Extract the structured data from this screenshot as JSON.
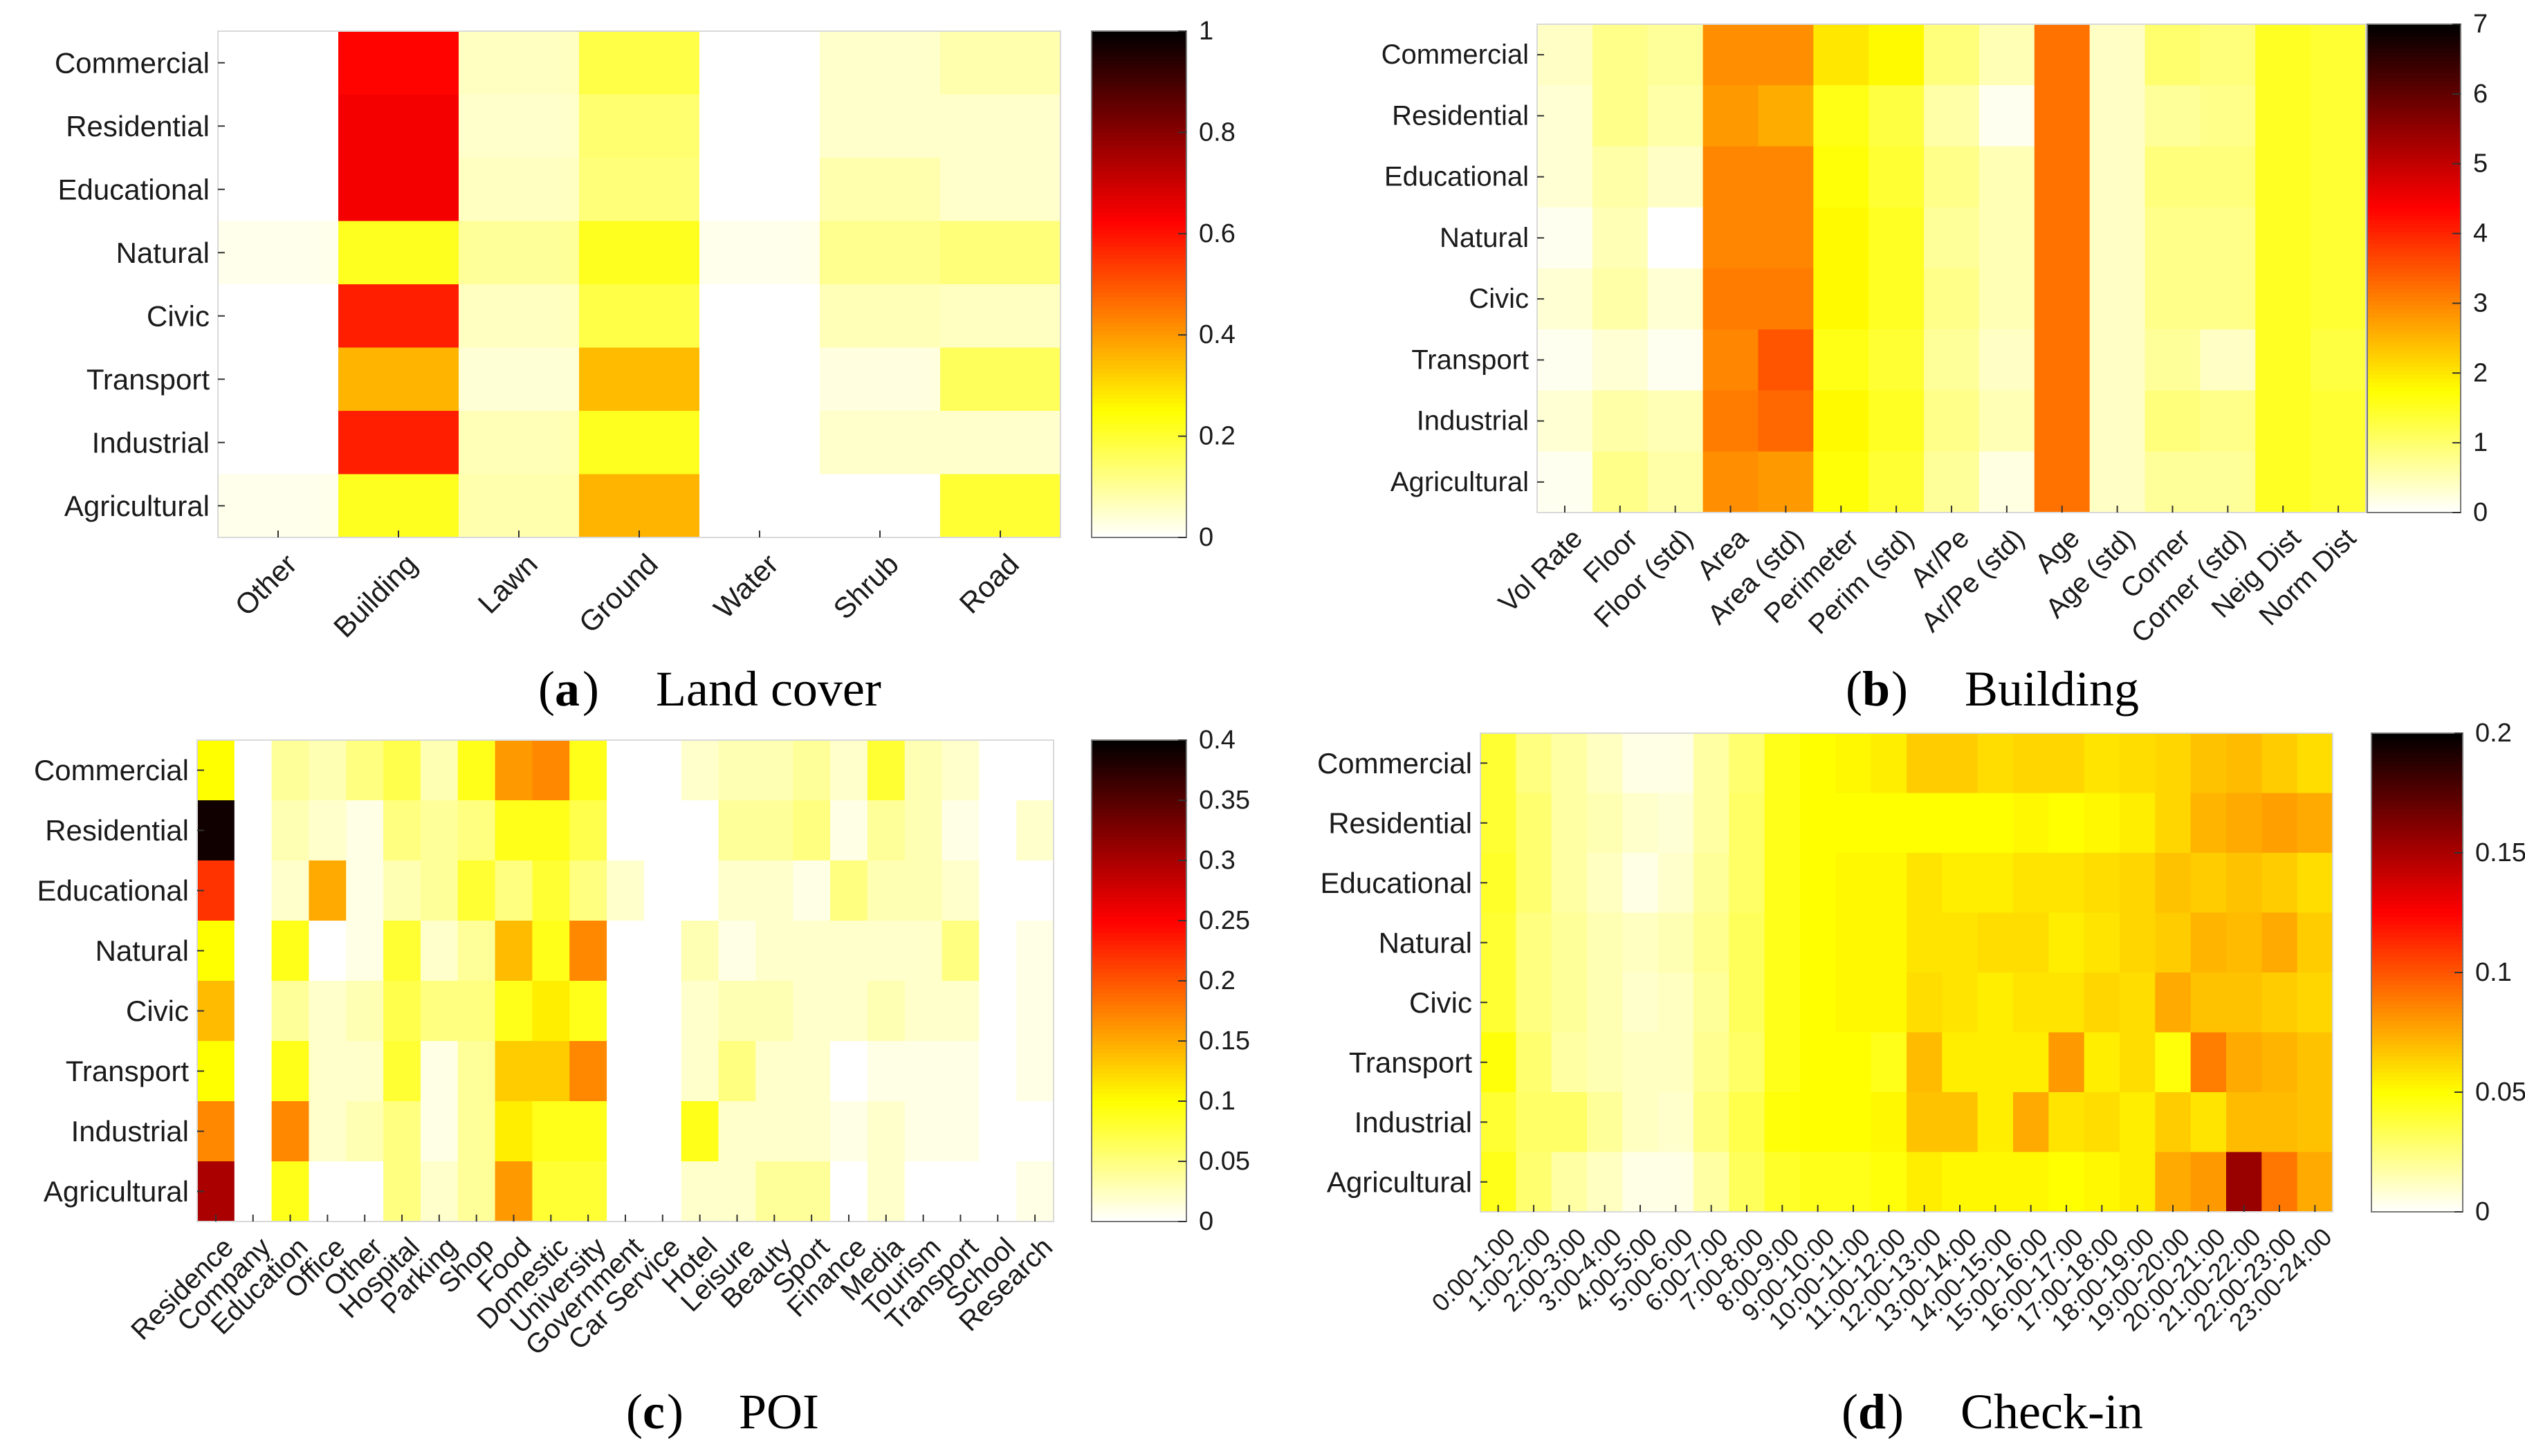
{
  "figure": {
    "panels": [
      {
        "letter": "a",
        "caption": "Land cover"
      },
      {
        "letter": "b",
        "caption": "Building"
      },
      {
        "letter": "c",
        "caption": "POI"
      },
      {
        "letter": "d",
        "caption": "Check-in"
      }
    ]
  },
  "chart_data": [
    {
      "id": "a",
      "type": "heatmap",
      "title": "(a) Land cover",
      "rows": [
        "Commercial",
        "Residential",
        "Educational",
        "Natural",
        "Civic",
        "Transport",
        "Industrial",
        "Agricultural"
      ],
      "columns": [
        "Other",
        "Building",
        "Lawn",
        "Ground",
        "Water",
        "Shrub",
        "Road"
      ],
      "colorbar": {
        "min": 0,
        "max": 1,
        "ticks": [
          "0",
          "0.2",
          "0.4",
          "0.6",
          "0.8",
          "1"
        ]
      },
      "values": [
        [
          0.0,
          0.62,
          0.06,
          0.18,
          0.0,
          0.05,
          0.08
        ],
        [
          0.0,
          0.64,
          0.05,
          0.14,
          0.0,
          0.05,
          0.05
        ],
        [
          0.0,
          0.64,
          0.06,
          0.13,
          0.0,
          0.08,
          0.05
        ],
        [
          0.02,
          0.22,
          0.1,
          0.22,
          0.02,
          0.11,
          0.13
        ],
        [
          0.0,
          0.58,
          0.06,
          0.18,
          0.0,
          0.07,
          0.06
        ],
        [
          0.0,
          0.36,
          0.04,
          0.35,
          0.0,
          0.03,
          0.16
        ],
        [
          0.0,
          0.58,
          0.07,
          0.22,
          0.0,
          0.05,
          0.05
        ],
        [
          0.02,
          0.22,
          0.08,
          0.36,
          0.0,
          0.0,
          0.2
        ]
      ]
    },
    {
      "id": "b",
      "type": "heatmap",
      "title": "(b) Building",
      "rows": [
        "Commercial",
        "Residential",
        "Educational",
        "Natural",
        "Civic",
        "Transport",
        "Industrial",
        "Agricultural"
      ],
      "columns": [
        "Vol Rate",
        "Floor",
        "Floor (std)",
        "Area",
        "Area (std)",
        "Perimeter",
        "Perim (std)",
        "Ar/Pe",
        "Ar/Pe (std)",
        "Age",
        "Age (std)",
        "Corner",
        "Corner (std)",
        "Neig Dist",
        "Norm Dist"
      ],
      "colorbar": {
        "min": 0,
        "max": 7,
        "ticks": [
          "0",
          "1",
          "2",
          "3",
          "4",
          "5",
          "6",
          "7"
        ]
      },
      "values": [
        [
          0.4,
          0.8,
          0.7,
          2.9,
          2.9,
          2.0,
          1.8,
          0.9,
          0.5,
          3.2,
          0.4,
          1.0,
          0.9,
          1.5,
          1.4
        ],
        [
          0.3,
          0.8,
          0.6,
          2.8,
          2.6,
          1.6,
          1.3,
          0.6,
          0.1,
          3.2,
          0.4,
          0.7,
          0.8,
          1.5,
          1.4
        ],
        [
          0.3,
          0.6,
          0.4,
          3.0,
          3.0,
          1.7,
          1.4,
          0.8,
          0.5,
          3.2,
          0.4,
          0.9,
          0.9,
          1.5,
          1.4
        ],
        [
          0.1,
          0.5,
          0.0,
          3.0,
          3.0,
          1.8,
          1.5,
          0.7,
          0.5,
          3.2,
          0.4,
          0.8,
          0.8,
          1.5,
          1.4
        ],
        [
          0.3,
          0.6,
          0.3,
          3.1,
          3.1,
          1.8,
          1.5,
          0.8,
          0.5,
          3.2,
          0.4,
          0.8,
          0.8,
          1.5,
          1.4
        ],
        [
          0.1,
          0.3,
          0.1,
          3.0,
          3.5,
          1.6,
          1.4,
          0.7,
          0.4,
          3.2,
          0.4,
          0.7,
          0.4,
          1.5,
          1.3
        ],
        [
          0.3,
          0.6,
          0.5,
          3.1,
          3.3,
          1.8,
          1.5,
          0.8,
          0.5,
          3.2,
          0.4,
          0.9,
          0.8,
          1.5,
          1.4
        ],
        [
          0.1,
          0.8,
          0.6,
          2.9,
          2.8,
          1.7,
          1.4,
          0.7,
          0.2,
          3.2,
          0.4,
          0.7,
          0.7,
          1.5,
          1.4
        ]
      ]
    },
    {
      "id": "c",
      "type": "heatmap",
      "title": "(c) POI",
      "rows": [
        "Commercial",
        "Residential",
        "Educational",
        "Natural",
        "Civic",
        "Transport",
        "Industrial",
        "Agricultural"
      ],
      "columns": [
        "Residence",
        "Company",
        "Education",
        "Office",
        "Other",
        "Hospital",
        "Parking",
        "Shop",
        "Food",
        "Domestic",
        "University",
        "Government",
        "Car Service",
        "Hotel",
        "Leisure",
        "Beauty",
        "Sport",
        "Finance",
        "Media",
        "Tourism",
        "Transport",
        "School",
        "Research"
      ],
      "colorbar": {
        "min": 0,
        "max": 0.4,
        "ticks": [
          "0",
          "0.05",
          "0.1",
          "0.15",
          "0.2",
          "0.25",
          "0.3",
          "0.35",
          "0.4"
        ]
      },
      "values": [
        [
          0.1,
          0.0,
          0.04,
          0.03,
          0.05,
          0.07,
          0.03,
          0.09,
          0.16,
          0.17,
          0.09,
          0.0,
          0.0,
          0.02,
          0.03,
          0.03,
          0.04,
          0.02,
          0.08,
          0.03,
          0.02,
          0.0,
          0.0
        ],
        [
          0.39,
          0.0,
          0.03,
          0.02,
          0.01,
          0.05,
          0.04,
          0.05,
          0.09,
          0.09,
          0.07,
          0.0,
          0.0,
          0.0,
          0.04,
          0.04,
          0.05,
          0.01,
          0.04,
          0.03,
          0.01,
          0.0,
          0.02
        ],
        [
          0.22,
          0.0,
          0.02,
          0.15,
          0.01,
          0.03,
          0.04,
          0.08,
          0.05,
          0.08,
          0.05,
          0.02,
          0.0,
          0.0,
          0.02,
          0.02,
          0.01,
          0.05,
          0.03,
          0.03,
          0.02,
          0.0,
          0.0
        ],
        [
          0.1,
          0.0,
          0.09,
          0.0,
          0.01,
          0.08,
          0.02,
          0.04,
          0.14,
          0.09,
          0.17,
          0.0,
          0.0,
          0.03,
          0.01,
          0.02,
          0.02,
          0.02,
          0.02,
          0.02,
          0.05,
          0.0,
          0.01
        ],
        [
          0.14,
          0.0,
          0.04,
          0.02,
          0.03,
          0.07,
          0.05,
          0.05,
          0.09,
          0.11,
          0.09,
          0.0,
          0.0,
          0.02,
          0.03,
          0.03,
          0.02,
          0.02,
          0.03,
          0.02,
          0.02,
          0.0,
          0.01
        ],
        [
          0.1,
          0.0,
          0.09,
          0.02,
          0.02,
          0.08,
          0.01,
          0.04,
          0.13,
          0.13,
          0.17,
          0.0,
          0.0,
          0.02,
          0.05,
          0.02,
          0.02,
          0.0,
          0.01,
          0.01,
          0.01,
          0.0,
          0.01
        ],
        [
          0.17,
          0.0,
          0.17,
          0.02,
          0.03,
          0.05,
          0.01,
          0.04,
          0.11,
          0.09,
          0.09,
          0.0,
          0.0,
          0.09,
          0.02,
          0.02,
          0.02,
          0.01,
          0.02,
          0.01,
          0.01,
          0.0,
          0.0
        ],
        [
          0.3,
          0.0,
          0.09,
          0.0,
          0.0,
          0.05,
          0.02,
          0.04,
          0.16,
          0.08,
          0.08,
          0.0,
          0.0,
          0.02,
          0.02,
          0.04,
          0.04,
          0.0,
          0.02,
          0.0,
          0.0,
          0.0,
          0.01
        ]
      ]
    },
    {
      "id": "d",
      "type": "heatmap",
      "title": "(d) Check-in",
      "rows": [
        "Commercial",
        "Residential",
        "Educational",
        "Natural",
        "Civic",
        "Transport",
        "Industrial",
        "Agricultural"
      ],
      "columns": [
        "0:00-1:00",
        "1:00-2:00",
        "2:00-3:00",
        "3:00-4:00",
        "4:00-5:00",
        "5:00-6:00",
        "6:00-7:00",
        "7:00-8:00",
        "8:00-9:00",
        "9:00-10:00",
        "10:00-11:00",
        "11:00-12:00",
        "12:00-13:00",
        "13:00-14:00",
        "14:00-15:00",
        "15:00-16:00",
        "16:00-17:00",
        "17:00-18:00",
        "18:00-19:00",
        "19:00-20:00",
        "20:00-21:00",
        "21:00-22:00",
        "22:00-23:00",
        "23:00-24:00"
      ],
      "colorbar": {
        "min": 0,
        "max": 0.2,
        "ticks": [
          "0",
          "0.05",
          "0.1",
          "0.15",
          " 0.2"
        ]
      },
      "values": [
        [
          0.04,
          0.025,
          0.018,
          0.012,
          0.005,
          0.005,
          0.018,
          0.028,
          0.045,
          0.05,
          0.052,
          0.055,
          0.065,
          0.065,
          0.06,
          0.062,
          0.062,
          0.058,
          0.06,
          0.062,
          0.068,
          0.07,
          0.065,
          0.06
        ],
        [
          0.04,
          0.028,
          0.018,
          0.015,
          0.01,
          0.008,
          0.018,
          0.03,
          0.045,
          0.05,
          0.05,
          0.05,
          0.05,
          0.05,
          0.05,
          0.052,
          0.05,
          0.052,
          0.055,
          0.062,
          0.072,
          0.075,
          0.078,
          0.075
        ],
        [
          0.042,
          0.028,
          0.018,
          0.012,
          0.005,
          0.01,
          0.02,
          0.03,
          0.045,
          0.05,
          0.052,
          0.052,
          0.058,
          0.055,
          0.055,
          0.058,
          0.058,
          0.06,
          0.062,
          0.068,
          0.065,
          0.068,
          0.065,
          0.06
        ],
        [
          0.04,
          0.025,
          0.02,
          0.015,
          0.012,
          0.015,
          0.022,
          0.032,
          0.045,
          0.05,
          0.052,
          0.052,
          0.058,
          0.058,
          0.06,
          0.06,
          0.055,
          0.058,
          0.062,
          0.065,
          0.072,
          0.07,
          0.075,
          0.065
        ],
        [
          0.04,
          0.025,
          0.02,
          0.015,
          0.01,
          0.012,
          0.02,
          0.032,
          0.045,
          0.05,
          0.052,
          0.052,
          0.06,
          0.058,
          0.055,
          0.058,
          0.058,
          0.062,
          0.06,
          0.075,
          0.068,
          0.068,
          0.065,
          0.062
        ],
        [
          0.048,
          0.028,
          0.018,
          0.015,
          0.012,
          0.012,
          0.022,
          0.03,
          0.045,
          0.05,
          0.05,
          0.045,
          0.07,
          0.055,
          0.055,
          0.055,
          0.08,
          0.055,
          0.06,
          0.048,
          0.088,
          0.075,
          0.072,
          0.068
        ],
        [
          0.04,
          0.03,
          0.03,
          0.02,
          0.012,
          0.01,
          0.025,
          0.035,
          0.048,
          0.05,
          0.05,
          0.052,
          0.068,
          0.068,
          0.055,
          0.075,
          0.058,
          0.06,
          0.055,
          0.065,
          0.058,
          0.07,
          0.07,
          0.068
        ],
        [
          0.045,
          0.028,
          0.018,
          0.012,
          0.005,
          0.005,
          0.018,
          0.032,
          0.042,
          0.045,
          0.045,
          0.048,
          0.055,
          0.052,
          0.052,
          0.052,
          0.05,
          0.052,
          0.055,
          0.075,
          0.08,
          0.155,
          0.09,
          0.075
        ]
      ]
    }
  ]
}
